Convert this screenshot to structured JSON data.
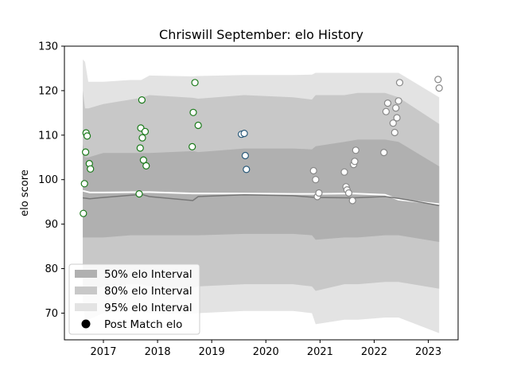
{
  "chart_data": {
    "type": "scatter",
    "title": "Chriswill September: elo History",
    "xlabel": "",
    "ylabel": "elo score",
    "xlim": [
      2016.28,
      2023.55
    ],
    "ylim": [
      64,
      130
    ],
    "x_ticks": [
      2017,
      2018,
      2019,
      2020,
      2021,
      2022,
      2023
    ],
    "y_ticks": [
      70,
      80,
      90,
      100,
      110,
      120,
      130
    ],
    "grid": false,
    "legend": {
      "placement": "lower-left",
      "entries": [
        {
          "label": "50% elo Interval",
          "color": "#b0b0b0"
        },
        {
          "label": "80% elo Interval",
          "color": "#c8c8c8"
        },
        {
          "label": "95% elo Interval",
          "color": "#e3e3e3"
        },
        {
          "label": "Post Match elo",
          "color": "#000000"
        }
      ]
    },
    "bands": {
      "x": [
        2016.62,
        2016.66,
        2016.72,
        2017.0,
        2017.5,
        2017.7,
        2017.85,
        2018.65,
        2018.75,
        2019.6,
        2020.5,
        2020.85,
        2020.92,
        2021.45,
        2021.7,
        2022.2,
        2022.45,
        2023.2
      ],
      "b95": {
        "upper": [
          127,
          126.5,
          122,
          122,
          122.4,
          122.4,
          123.4,
          123.2,
          123.3,
          123.5,
          123.5,
          123.6,
          124,
          124,
          124,
          124,
          124,
          118.5
        ],
        "lower": [
          73,
          68.5,
          68.5,
          70,
          70.4,
          70.4,
          70,
          69.9,
          70,
          70.5,
          70.5,
          70,
          67.5,
          68.5,
          68.5,
          69,
          69,
          65.5
        ]
      },
      "b80": {
        "upper": [
          120,
          116,
          116,
          117,
          118,
          118.4,
          119,
          118.4,
          118.2,
          119,
          118.5,
          118,
          119,
          119,
          119.5,
          119.5,
          118.5,
          112.5
        ],
        "lower": [
          75,
          75,
          75,
          76,
          76.5,
          76.5,
          76,
          75.7,
          76,
          76.5,
          76.5,
          76,
          75,
          76.5,
          76.5,
          77,
          77,
          75.5
        ]
      },
      "b50": {
        "upper": [
          108,
          105,
          105,
          106,
          106,
          106,
          106,
          106.4,
          106.2,
          107,
          107,
          106.8,
          107.5,
          108.5,
          109,
          109,
          108.5,
          103
        ],
        "lower": [
          87,
          87,
          87,
          87,
          87.5,
          87.5,
          87.5,
          87.5,
          87.5,
          87.8,
          87.8,
          87.5,
          86.5,
          87,
          87,
          87.5,
          87.5,
          86
        ]
      }
    },
    "mean_line": {
      "x": [
        2016.62,
        2016.75,
        2017.0,
        2017.7,
        2017.85,
        2018.65,
        2018.75,
        2019.6,
        2020.5,
        2020.92,
        2021.6,
        2022.2,
        2022.45,
        2023.2
      ],
      "y": [
        97.5,
        97.1,
        97.1,
        97.2,
        97.2,
        96.9,
        96.9,
        96.9,
        96.8,
        96.8,
        96.9,
        96.6,
        95.5,
        94.5
      ]
    },
    "median_line": {
      "x": [
        2016.62,
        2016.75,
        2017.0,
        2017.7,
        2017.85,
        2018.65,
        2018.75,
        2019.6,
        2020.5,
        2020.92,
        2021.6,
        2022.2,
        2022.45,
        2023.2
      ],
      "y": [
        95.9,
        95.7,
        96.0,
        96.7,
        96.2,
        95.3,
        96.2,
        96.6,
        96.4,
        96.0,
        95.9,
        96.2,
        95.8,
        94.2
      ]
    },
    "series": [
      {
        "color": "#1a7a1a",
        "points": [
          [
            2016.63,
            92.4
          ],
          [
            2016.65,
            99.1
          ],
          [
            2016.67,
            106.2
          ],
          [
            2016.68,
            110.5
          ],
          [
            2016.7,
            109.8
          ],
          [
            2016.74,
            103.6
          ],
          [
            2016.76,
            102.4
          ],
          [
            2017.66,
            96.8
          ],
          [
            2017.68,
            107.1
          ],
          [
            2017.69,
            111.6
          ],
          [
            2017.71,
            117.9
          ],
          [
            2017.72,
            109.4
          ],
          [
            2017.74,
            104.4
          ],
          [
            2017.77,
            110.8
          ],
          [
            2017.79,
            103.1
          ],
          [
            2018.64,
            107.4
          ],
          [
            2018.66,
            115.1
          ],
          [
            2018.69,
            121.8
          ],
          [
            2018.75,
            112.2
          ]
        ]
      },
      {
        "color": "#2a5a7a",
        "points": [
          [
            2019.55,
            110.2
          ],
          [
            2019.6,
            110.4
          ],
          [
            2019.62,
            105.4
          ],
          [
            2019.64,
            102.3
          ]
        ]
      },
      {
        "color": "#888888",
        "points": [
          [
            2020.88,
            102.0
          ],
          [
            2020.92,
            100.0
          ],
          [
            2020.95,
            96.2
          ],
          [
            2020.98,
            97.0
          ],
          [
            2021.45,
            101.7
          ],
          [
            2021.48,
            98.4
          ],
          [
            2021.5,
            97.7
          ],
          [
            2021.53,
            97.0
          ],
          [
            2021.6,
            95.3
          ],
          [
            2021.62,
            103.4
          ],
          [
            2021.64,
            104.1
          ],
          [
            2021.66,
            106.6
          ],
          [
            2022.18,
            106.1
          ],
          [
            2022.22,
            115.3
          ],
          [
            2022.25,
            117.2
          ],
          [
            2022.35,
            112.7
          ],
          [
            2022.38,
            110.6
          ],
          [
            2022.4,
            116.1
          ],
          [
            2022.42,
            113.9
          ],
          [
            2022.45,
            117.7
          ],
          [
            2022.47,
            121.8
          ],
          [
            2023.18,
            122.5
          ],
          [
            2023.2,
            120.6
          ]
        ]
      }
    ]
  }
}
